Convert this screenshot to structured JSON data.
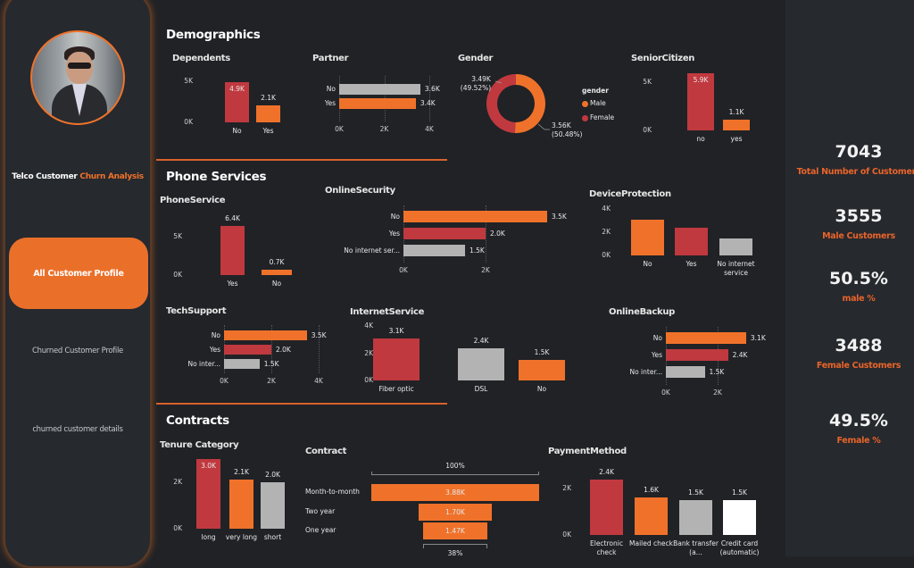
{
  "sidebar": {
    "title_part1": "Telco Customer ",
    "title_part2": "Churn Analysis",
    "items": [
      {
        "label": "All Customer Profile",
        "active": true
      },
      {
        "label": "Churned Customer Profile",
        "active": false
      },
      {
        "label": "churned customer details",
        "active": false
      }
    ]
  },
  "sections": {
    "demographics": "Demographics",
    "phone_services": "Phone Services",
    "contracts": "Contracts"
  },
  "kpis": [
    {
      "value": "7043",
      "label": "Total Number of Customers"
    },
    {
      "value": "3555",
      "label": "Male Customers"
    },
    {
      "value": "50.5%",
      "label": "male %"
    },
    {
      "value": "3488",
      "label": "Female Customers"
    },
    {
      "value": "49.5%",
      "label": "Female %"
    }
  ],
  "colors": {
    "red": "#c0393f",
    "orange": "#f0722a",
    "gray": "#b3b3b3",
    "white": "#ffffff",
    "accent": "#ea702a"
  },
  "chart_data": [
    {
      "id": "dependents",
      "type": "bar",
      "title": "Dependents",
      "categories": [
        "No",
        "Yes"
      ],
      "values": [
        4900,
        2100
      ],
      "labels": [
        "4.9K",
        "2.1K"
      ],
      "colors": [
        "red",
        "orange"
      ],
      "ticks": [
        {
          "v": 5000,
          "t": "5K"
        },
        {
          "v": 0,
          "t": "0K"
        }
      ]
    },
    {
      "id": "partner",
      "type": "hbar",
      "title": "Partner",
      "categories": [
        "No",
        "Yes"
      ],
      "values": [
        3600,
        3400
      ],
      "labels": [
        "3.6K",
        "3.4K"
      ],
      "colors": [
        "gray",
        "orange"
      ],
      "ticks": [
        {
          "v": 0,
          "t": "0K"
        },
        {
          "v": 2000,
          "t": "2K"
        },
        {
          "v": 4000,
          "t": "4K"
        }
      ]
    },
    {
      "id": "gender",
      "type": "pie",
      "title": "Gender",
      "legend_title": "gender",
      "legend": "right",
      "categories": [
        "Male",
        "Female"
      ],
      "values": [
        3560,
        3490
      ],
      "labels": [
        "3.56K",
        "3.49K"
      ],
      "percents": [
        "(50.48%)",
        "(49.52%)"
      ],
      "colors": [
        "orange",
        "red"
      ]
    },
    {
      "id": "senior",
      "type": "bar",
      "title": "SeniorCitizen",
      "categories": [
        "no",
        "yes"
      ],
      "values": [
        5900,
        1100
      ],
      "labels": [
        "5.9K",
        "1.1K"
      ],
      "colors": [
        "red",
        "orange"
      ],
      "ticks": [
        {
          "v": 5000,
          "t": "5K"
        },
        {
          "v": 0,
          "t": "0K"
        }
      ]
    },
    {
      "id": "phone",
      "type": "bar",
      "title": "PhoneService",
      "categories": [
        "Yes",
        "No"
      ],
      "values": [
        6400,
        700
      ],
      "labels": [
        "6.4K",
        "0.7K"
      ],
      "colors": [
        "red",
        "orange"
      ],
      "ticks": [
        {
          "v": 5000,
          "t": "5K"
        },
        {
          "v": 0,
          "t": "0K"
        }
      ]
    },
    {
      "id": "onlinesec",
      "type": "hbar",
      "title": "OnlineSecurity",
      "categories": [
        "No",
        "Yes",
        "No internet ser..."
      ],
      "values": [
        3500,
        2000,
        1500
      ],
      "labels": [
        "3.5K",
        "2.0K",
        "1.5K"
      ],
      "colors": [
        "orange",
        "red",
        "gray"
      ],
      "ticks": [
        {
          "v": 0,
          "t": "0K"
        },
        {
          "v": 2000,
          "t": "2K"
        }
      ]
    },
    {
      "id": "device",
      "type": "bar",
      "title": "DeviceProtection",
      "categories": [
        "No",
        "Yes",
        "No internet service"
      ],
      "values": [
        3100,
        2400,
        1500
      ],
      "labels": [],
      "colors": [
        "orange",
        "red",
        "gray"
      ],
      "ticks": [
        {
          "v": 4000,
          "t": "4K"
        },
        {
          "v": 2000,
          "t": "2K"
        },
        {
          "v": 0,
          "t": "0K"
        }
      ]
    },
    {
      "id": "tech",
      "type": "hbar",
      "title": "TechSupport",
      "categories": [
        "No",
        "Yes",
        "No inter..."
      ],
      "values": [
        3500,
        2000,
        1500
      ],
      "labels": [
        "3.5K",
        "2.0K",
        "1.5K"
      ],
      "colors": [
        "orange",
        "red",
        "gray"
      ],
      "ticks": [
        {
          "v": 0,
          "t": "0K"
        },
        {
          "v": 2000,
          "t": "2K"
        },
        {
          "v": 4000,
          "t": "4K"
        }
      ]
    },
    {
      "id": "internet",
      "type": "bar",
      "title": "InternetService",
      "categories": [
        "Fiber optic",
        "DSL",
        "No"
      ],
      "values": [
        3100,
        2400,
        1500
      ],
      "labels": [
        "3.1K",
        "2.4K",
        "1.5K"
      ],
      "colors": [
        "red",
        "gray",
        "orange"
      ],
      "ticks": [
        {
          "v": 4000,
          "t": "4K"
        },
        {
          "v": 2000,
          "t": "2K"
        },
        {
          "v": 0,
          "t": "0K"
        }
      ]
    },
    {
      "id": "backup",
      "type": "hbar",
      "title": "OnlineBackup",
      "categories": [
        "No",
        "Yes",
        "No inter..."
      ],
      "values": [
        3100,
        2400,
        1500
      ],
      "labels": [
        "3.1K",
        "2.4K",
        "1.5K"
      ],
      "colors": [
        "orange",
        "red",
        "gray"
      ],
      "ticks": [
        {
          "v": 0,
          "t": "0K"
        },
        {
          "v": 2000,
          "t": "2K"
        }
      ]
    },
    {
      "id": "tenure",
      "type": "bar",
      "title": "Tenure Category",
      "categories": [
        "long",
        "very long",
        "short"
      ],
      "values": [
        3000,
        2100,
        2000
      ],
      "labels": [
        "3.0K",
        "2.1K",
        "2.0K"
      ],
      "colors": [
        "red",
        "orange",
        "gray"
      ],
      "ticks": [
        {
          "v": 2000,
          "t": "2K"
        },
        {
          "v": 0,
          "t": "0K"
        }
      ]
    },
    {
      "id": "contract",
      "type": "funnel",
      "title": "Contract",
      "categories": [
        "Month-to-month",
        "Two year",
        "One year"
      ],
      "values": [
        3880,
        1700,
        1470
      ],
      "labels": [
        "3.88K",
        "1.70K",
        "1.47K"
      ],
      "top_label": "100%",
      "bottom_label": "38%",
      "colors": [
        "orange",
        "orange",
        "orange"
      ]
    },
    {
      "id": "payment",
      "type": "bar",
      "title": "PaymentMethod",
      "categories": [
        "Electronic check",
        "Mailed check",
        "Bank transfer (a...",
        "Credit card (automatic)"
      ],
      "values": [
        2400,
        1600,
        1500,
        1500
      ],
      "labels": [
        "2.4K",
        "1.6K",
        "1.5K",
        "1.5K"
      ],
      "colors": [
        "red",
        "orange",
        "gray",
        "white"
      ],
      "ticks": [
        {
          "v": 2000,
          "t": "2K"
        },
        {
          "v": 0,
          "t": "0K"
        }
      ]
    }
  ]
}
